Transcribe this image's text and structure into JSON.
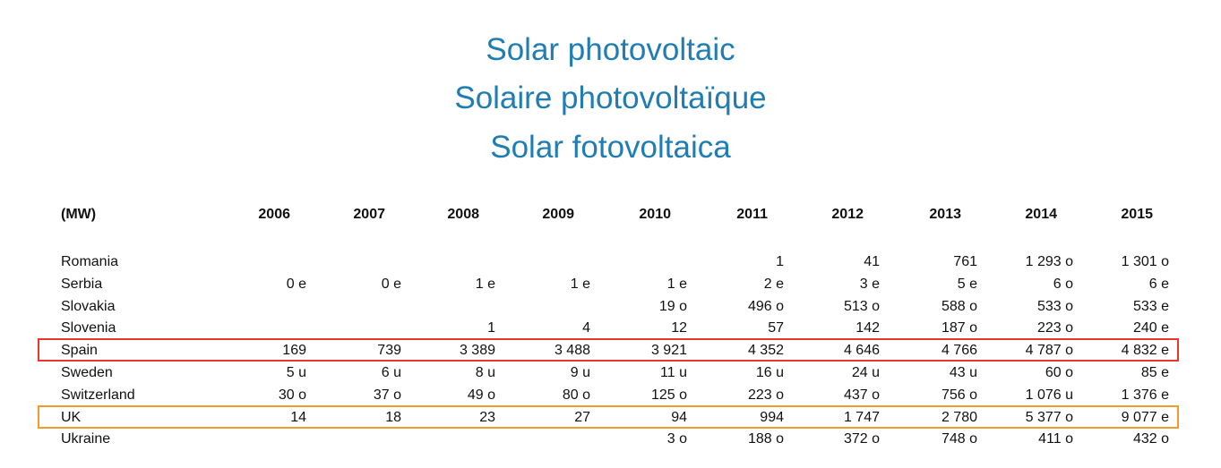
{
  "header": {
    "titles": [
      "Solar photovoltaic",
      "Solaire photovoltaïque",
      "Solar fotovoltaica"
    ]
  },
  "table": {
    "unit": "(MW)",
    "columns": [
      "2006",
      "2007",
      "2008",
      "2009",
      "2010",
      "2011",
      "2012",
      "2013",
      "2014",
      "2015"
    ],
    "rows": [
      {
        "label": "Romania",
        "cells": [
          null,
          null,
          null,
          null,
          null,
          "1",
          "41",
          "761",
          "1 293 o",
          "1 301 o"
        ]
      },
      {
        "label": "Serbia",
        "cells": [
          "0 e",
          "0 e",
          "1 e",
          "1 e",
          "1 e",
          "2 e",
          "3 e",
          "5 e",
          "6 o",
          "6 e"
        ]
      },
      {
        "label": "Slovakia",
        "cells": [
          null,
          null,
          null,
          null,
          "19 o",
          "496 o",
          "513 o",
          "588 o",
          "533 o",
          "533 e"
        ]
      },
      {
        "label": "Slovenia",
        "cells": [
          null,
          null,
          "1",
          "4",
          "12",
          "57",
          "142",
          "187 o",
          "223 o",
          "240 e"
        ]
      },
      {
        "label": "Spain",
        "cells": [
          "169",
          "739",
          "3 389",
          "3 488",
          "3 921",
          "4 352",
          "4 646",
          "4 766",
          "4 787 o",
          "4 832 e"
        ]
      },
      {
        "label": "Sweden",
        "cells": [
          "5 u",
          "6 u",
          "8 u",
          "9 u",
          "11 u",
          "16 u",
          "24 u",
          "43 u",
          "60 o",
          "85 e"
        ]
      },
      {
        "label": "Switzerland",
        "cells": [
          "30 o",
          "37 o",
          "49 o",
          "80 o",
          "125 o",
          "223 o",
          "437 o",
          "756 o",
          "1 076 u",
          "1 376 e"
        ]
      },
      {
        "label": "UK",
        "cells": [
          "14",
          "18",
          "23",
          "27",
          "94",
          "994",
          "1 747",
          "2 780",
          "5 377 o",
          "9 077 e"
        ]
      },
      {
        "label": "Ukraine",
        "cells": [
          null,
          null,
          null,
          null,
          "3 o",
          "188 o",
          "372 o",
          "748 o",
          "411 o",
          "432 o"
        ]
      }
    ]
  }
}
